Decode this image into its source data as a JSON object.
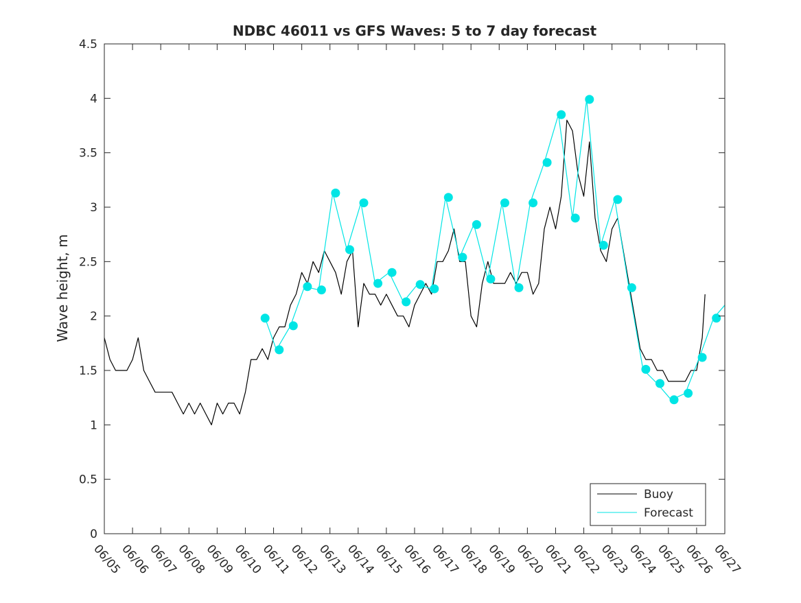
{
  "chart_data": {
    "type": "line",
    "title": "NDBC 46011 vs GFS Waves: 5 to 7 day forecast",
    "xlabel": "",
    "ylabel": "Wave height, m",
    "xlim": [
      "06/05",
      "06/27"
    ],
    "ylim": [
      0,
      4.5
    ],
    "yticks": [
      "0",
      "0.5",
      "1",
      "1.5",
      "2",
      "2.5",
      "3",
      "3.5",
      "4",
      "4.5"
    ],
    "xticks": [
      "06/05",
      "06/06",
      "06/07",
      "06/08",
      "06/09",
      "06/10",
      "06/11",
      "06/12",
      "06/13",
      "06/14",
      "06/15",
      "06/16",
      "06/17",
      "06/18",
      "06/19",
      "06/20",
      "06/21",
      "06/22",
      "06/23",
      "06/24",
      "06/25",
      "06/26",
      "06/27"
    ],
    "grid": false,
    "legend_position": "bottom-right",
    "colors": {
      "buoy": "#000000",
      "forecast": "#00e5e5"
    },
    "series": [
      {
        "name": "Buoy",
        "type": "line",
        "color": "#000000",
        "x": [
          5.0,
          5.2,
          5.4,
          5.6,
          5.8,
          6.0,
          6.2,
          6.4,
          6.6,
          6.8,
          7.0,
          7.2,
          7.4,
          7.6,
          7.8,
          8.0,
          8.2,
          8.4,
          8.6,
          8.8,
          9.0,
          9.2,
          9.4,
          9.6,
          9.8,
          10.0,
          10.2,
          10.4,
          10.6,
          10.8,
          11.0,
          11.2,
          11.4,
          11.6,
          11.8,
          12.0,
          12.2,
          12.4,
          12.6,
          12.8,
          13.0,
          13.2,
          13.4,
          13.6,
          13.8,
          14.0,
          14.2,
          14.4,
          14.6,
          14.8,
          15.0,
          15.2,
          15.4,
          15.6,
          15.8,
          16.0,
          16.2,
          16.4,
          16.6,
          16.8,
          17.0,
          17.2,
          17.4,
          17.6,
          17.8,
          18.0,
          18.2,
          18.4,
          18.6,
          18.8,
          19.0,
          19.2,
          19.4,
          19.6,
          19.8,
          20.0,
          20.2,
          20.4,
          20.6,
          20.8,
          21.0,
          21.2,
          21.4,
          21.6,
          21.8,
          22.0,
          22.2,
          22.4,
          22.6,
          22.8,
          23.0,
          23.2,
          23.4,
          23.6,
          23.8,
          24.0,
          24.2,
          24.4,
          24.6,
          24.8,
          25.0,
          25.2,
          25.4,
          25.6,
          25.8,
          26.0,
          26.2,
          26.3
        ],
        "y": [
          1.8,
          1.6,
          1.5,
          1.5,
          1.5,
          1.6,
          1.8,
          1.5,
          1.4,
          1.3,
          1.3,
          1.3,
          1.3,
          1.2,
          1.1,
          1.2,
          1.1,
          1.2,
          1.1,
          1.0,
          1.2,
          1.1,
          1.2,
          1.2,
          1.1,
          1.3,
          1.6,
          1.6,
          1.7,
          1.6,
          1.8,
          1.9,
          1.9,
          2.1,
          2.2,
          2.4,
          2.3,
          2.5,
          2.4,
          2.6,
          2.5,
          2.4,
          2.2,
          2.5,
          2.6,
          1.9,
          2.3,
          2.2,
          2.2,
          2.1,
          2.2,
          2.1,
          2.0,
          2.0,
          1.9,
          2.1,
          2.2,
          2.3,
          2.2,
          2.5,
          2.5,
          2.6,
          2.8,
          2.5,
          2.5,
          2.0,
          1.9,
          2.3,
          2.5,
          2.3,
          2.3,
          2.3,
          2.4,
          2.3,
          2.4,
          2.4,
          2.2,
          2.3,
          2.8,
          3.0,
          2.8,
          3.1,
          3.8,
          3.7,
          3.3,
          3.1,
          3.6,
          2.9,
          2.6,
          2.5,
          2.8,
          2.9,
          2.6,
          2.3,
          2.0,
          1.7,
          1.6,
          1.6,
          1.5,
          1.5,
          1.4,
          1.4,
          1.4,
          1.4,
          1.5,
          1.5,
          1.8,
          2.2
        ]
      },
      {
        "name": "Forecast",
        "type": "line",
        "color": "#00e5e5",
        "x": [
          10.7,
          11.1,
          11.6,
          12.1,
          12.6,
          13.1,
          13.6,
          14.1,
          14.6,
          15.1,
          15.6,
          16.1,
          16.6,
          17.1,
          17.6,
          18.1,
          18.6,
          19.1,
          19.6,
          20.1,
          20.6,
          21.1,
          21.6,
          22.1,
          22.6,
          23.1,
          23.6,
          24.1,
          24.6,
          25.1,
          25.6,
          26.1,
          26.6,
          27.0
        ],
        "y": [
          1.98,
          1.69,
          1.91,
          2.27,
          2.24,
          3.13,
          2.61,
          3.04,
          2.3,
          2.4,
          2.13,
          2.29,
          2.25,
          3.09,
          2.54,
          2.84,
          2.34,
          3.04,
          2.26,
          3.04,
          3.41,
          3.85,
          2.9,
          3.99,
          2.65,
          3.07,
          2.26,
          1.51,
          1.38,
          1.23,
          1.29,
          1.62,
          1.98,
          2.1
        ]
      },
      {
        "name": "",
        "type": "scatter",
        "color": "#00e5e5",
        "x": [
          10.7,
          11.2,
          11.7,
          12.2,
          12.7,
          13.2,
          13.7,
          14.2,
          14.7,
          15.2,
          15.7,
          16.2,
          16.7,
          17.2,
          17.7,
          18.2,
          18.7,
          19.2,
          19.7,
          20.2,
          20.7,
          21.2,
          21.7,
          22.2,
          22.7,
          23.2,
          23.7,
          24.2,
          24.7,
          25.2,
          25.7,
          26.2,
          26.7
        ],
        "y": [
          1.98,
          1.69,
          1.91,
          2.27,
          2.24,
          3.13,
          2.61,
          3.04,
          2.3,
          2.4,
          2.13,
          2.29,
          2.25,
          3.09,
          2.54,
          2.84,
          2.34,
          3.04,
          2.26,
          3.04,
          3.41,
          3.85,
          2.9,
          3.99,
          2.65,
          3.07,
          2.26,
          1.51,
          1.38,
          1.23,
          1.29,
          1.62,
          1.98
        ]
      }
    ]
  }
}
